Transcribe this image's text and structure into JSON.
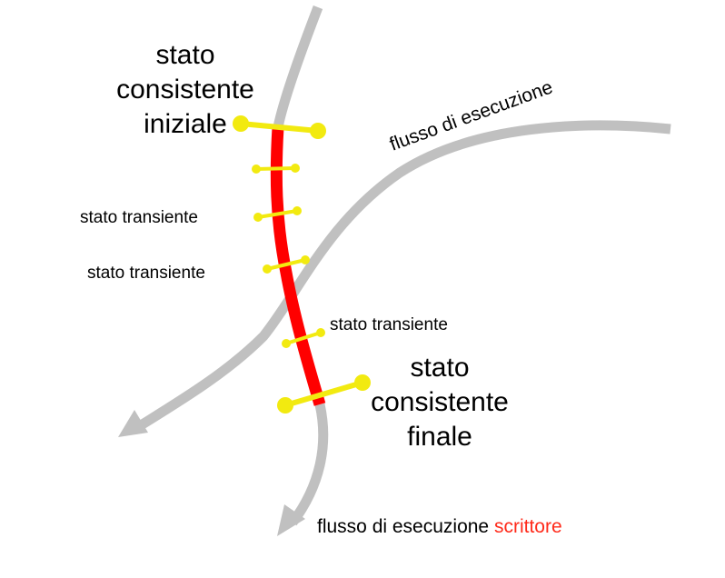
{
  "colors": {
    "flow_arrow": "#c0c0c0",
    "critical_path": "#ff0000",
    "state_marker": "#f2ea10",
    "writer_accent": "#ff2a1a",
    "text": "#000000"
  },
  "labels": {
    "initial_state": [
      "stato",
      "consistente",
      "iniziale"
    ],
    "final_state": [
      "stato",
      "consistente",
      "finale"
    ],
    "transient_1": "stato transiente",
    "transient_2": "stato transiente",
    "transient_3": "stato transiente",
    "flow_1": "flusso di esecuzione",
    "flow_2_prefix": "flusso di esecuzione",
    "flow_2_accent": "scrittore"
  }
}
